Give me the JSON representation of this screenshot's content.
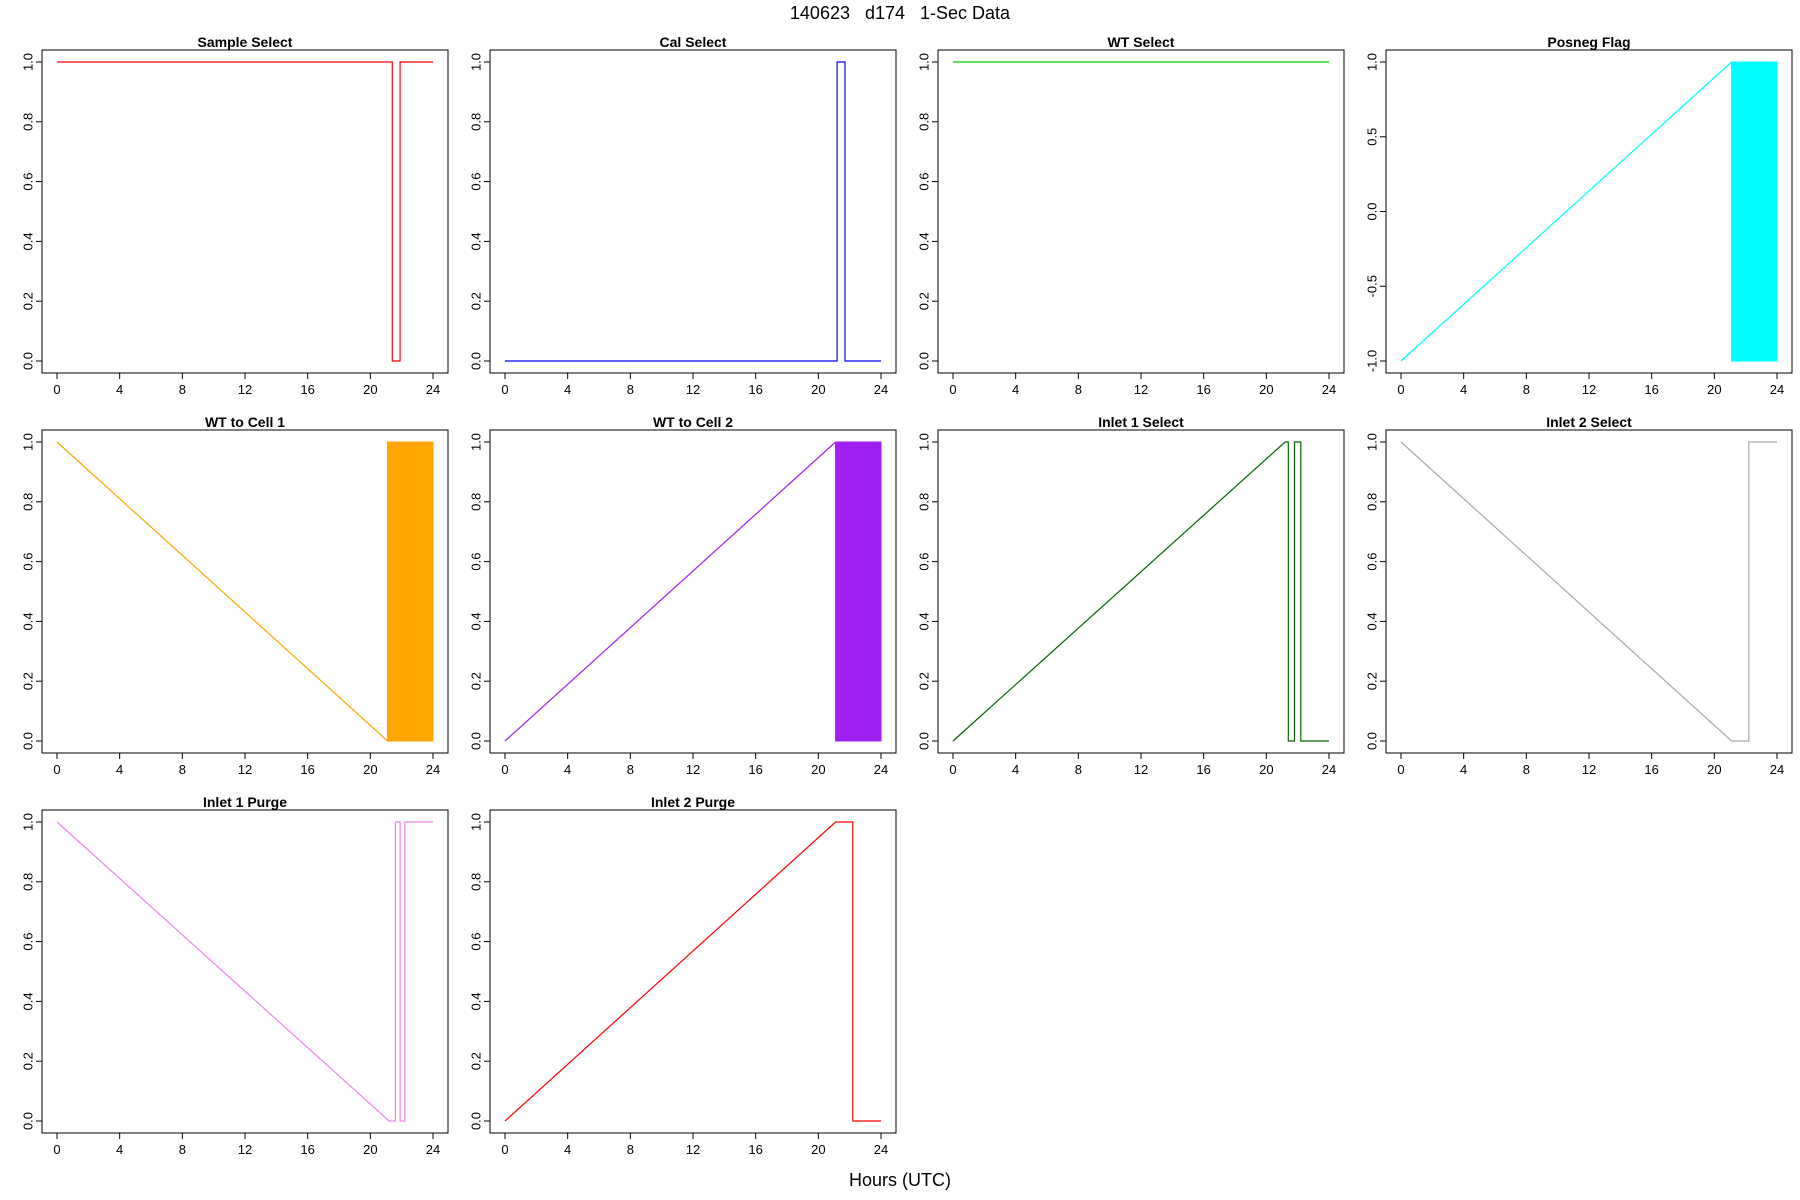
{
  "figure": {
    "title": "140623   d174   1-Sec Data",
    "xlabel": "Hours (UTC)"
  },
  "chart_data": [
    {
      "type": "line",
      "title": "Sample Select",
      "color": "#FF0000",
      "xlim": [
        0,
        24
      ],
      "ylim": [
        0,
        1
      ],
      "xticks": [
        "0",
        "4",
        "8",
        "12",
        "16",
        "20",
        "24"
      ],
      "yticks": [
        "0.0",
        "0.2",
        "0.4",
        "0.6",
        "0.8",
        "1.0"
      ],
      "series": [
        {
          "x": [
            0,
            21.4,
            21.4,
            21.9,
            21.9,
            24
          ],
          "y": [
            1,
            1,
            0,
            0,
            1,
            1
          ]
        }
      ]
    },
    {
      "type": "line",
      "title": "Cal Select",
      "color": "#0000FF",
      "xlim": [
        0,
        24
      ],
      "ylim": [
        0,
        1
      ],
      "xticks": [
        "0",
        "4",
        "8",
        "12",
        "16",
        "20",
        "24"
      ],
      "yticks": [
        "0.0",
        "0.2",
        "0.4",
        "0.6",
        "0.8",
        "1.0"
      ],
      "series": [
        {
          "x": [
            0,
            21.2,
            21.2,
            21.7,
            21.7,
            24
          ],
          "y": [
            0,
            0,
            1,
            1,
            0,
            0
          ]
        }
      ]
    },
    {
      "type": "line",
      "title": "WT Select",
      "color": "#00CC00",
      "xlim": [
        0,
        24
      ],
      "ylim": [
        0,
        1
      ],
      "xticks": [
        "0",
        "4",
        "8",
        "12",
        "16",
        "20",
        "24"
      ],
      "yticks": [
        "0.0",
        "0.2",
        "0.4",
        "0.6",
        "0.8",
        "1.0"
      ],
      "series": [
        {
          "x": [
            0,
            24
          ],
          "y": [
            1,
            1
          ]
        }
      ]
    },
    {
      "type": "line",
      "title": "Posneg Flag",
      "color": "#00FFFF",
      "xlim": [
        0,
        24
      ],
      "ylim": [
        -1,
        1
      ],
      "xticks": [
        "0",
        "4",
        "8",
        "12",
        "16",
        "20",
        "24"
      ],
      "yticks": [
        "-1.0",
        "-0.5",
        "0.0",
        "0.5",
        "1.0"
      ],
      "series": [
        {
          "x": [
            0,
            21.1
          ],
          "y": [
            -1,
            1
          ]
        }
      ],
      "band": {
        "x0": 21.1,
        "x1": 24,
        "y0": -1,
        "y1": 1
      }
    },
    {
      "type": "line",
      "title": "WT to Cell 1",
      "color": "#FFA500",
      "xlim": [
        0,
        24
      ],
      "ylim": [
        0,
        1
      ],
      "xticks": [
        "0",
        "4",
        "8",
        "12",
        "16",
        "20",
        "24"
      ],
      "yticks": [
        "0.0",
        "0.2",
        "0.4",
        "0.6",
        "0.8",
        "1.0"
      ],
      "series": [
        {
          "x": [
            0,
            21.1
          ],
          "y": [
            1,
            0
          ]
        }
      ],
      "band": {
        "x0": 21.1,
        "x1": 24,
        "y0": 0,
        "y1": 1
      }
    },
    {
      "type": "line",
      "title": "WT to Cell 2",
      "color": "#A020F0",
      "xlim": [
        0,
        24
      ],
      "ylim": [
        0,
        1
      ],
      "xticks": [
        "0",
        "4",
        "8",
        "12",
        "16",
        "20",
        "24"
      ],
      "yticks": [
        "0.0",
        "0.2",
        "0.4",
        "0.6",
        "0.8",
        "1.0"
      ],
      "series": [
        {
          "x": [
            0,
            21.1
          ],
          "y": [
            0,
            1
          ]
        }
      ],
      "band": {
        "x0": 21.1,
        "x1": 24,
        "y0": 0,
        "y1": 1
      }
    },
    {
      "type": "line",
      "title": "Inlet 1 Select",
      "color": "#006400",
      "xlim": [
        0,
        24
      ],
      "ylim": [
        0,
        1
      ],
      "xticks": [
        "0",
        "4",
        "8",
        "12",
        "16",
        "20",
        "24"
      ],
      "yticks": [
        "0.0",
        "0.2",
        "0.4",
        "0.6",
        "0.8",
        "1.0"
      ],
      "series": [
        {
          "x": [
            0,
            21.2,
            21.4,
            21.4,
            21.8,
            21.8,
            22.2,
            22.2,
            24
          ],
          "y": [
            0,
            1,
            1,
            0,
            0,
            1,
            1,
            0,
            0
          ]
        }
      ]
    },
    {
      "type": "line",
      "title": "Inlet 2 Select",
      "color": "#A9A9A9",
      "xlim": [
        0,
        24
      ],
      "ylim": [
        0,
        1
      ],
      "xticks": [
        "0",
        "4",
        "8",
        "12",
        "16",
        "20",
        "24"
      ],
      "yticks": [
        "0.0",
        "0.2",
        "0.4",
        "0.6",
        "0.8",
        "1.0"
      ],
      "series": [
        {
          "x": [
            0,
            21.1,
            22.2,
            22.2,
            24
          ],
          "y": [
            1,
            0,
            0,
            1,
            1
          ]
        }
      ]
    },
    {
      "type": "line",
      "title": "Inlet 1 Purge",
      "color": "#EE82EE",
      "xlim": [
        0,
        24
      ],
      "ylim": [
        0,
        1
      ],
      "xticks": [
        "0",
        "4",
        "8",
        "12",
        "16",
        "20",
        "24"
      ],
      "yticks": [
        "0.0",
        "0.2",
        "0.4",
        "0.6",
        "0.8",
        "1.0"
      ],
      "series": [
        {
          "x": [
            0,
            21.2,
            21.6,
            21.6,
            21.9,
            21.9,
            22.2,
            22.2,
            24
          ],
          "y": [
            1,
            0,
            0,
            1,
            1,
            0,
            0,
            1,
            1
          ]
        }
      ]
    },
    {
      "type": "line",
      "title": "Inlet 2 Purge",
      "color": "#FF0000",
      "xlim": [
        0,
        24
      ],
      "ylim": [
        0,
        1
      ],
      "xticks": [
        "0",
        "4",
        "8",
        "12",
        "16",
        "20",
        "24"
      ],
      "yticks": [
        "0.0",
        "0.2",
        "0.4",
        "0.6",
        "0.8",
        "1.0"
      ],
      "series": [
        {
          "x": [
            0,
            21.1,
            22.2,
            22.2,
            24
          ],
          "y": [
            0,
            1,
            1,
            0,
            0
          ]
        }
      ]
    }
  ]
}
